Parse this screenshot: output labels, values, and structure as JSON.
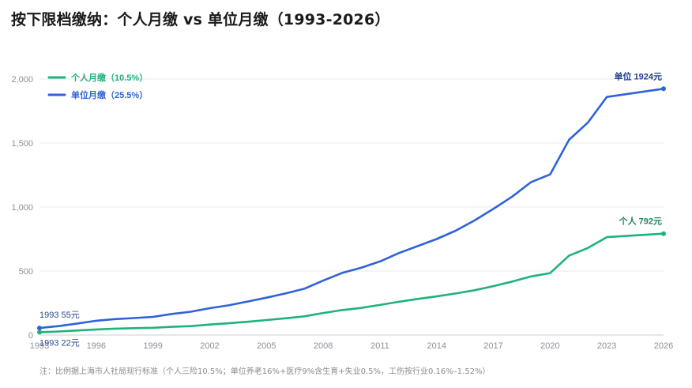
{
  "title": "按下限档缴纳：个人月缴 vs 单位月缴（1993-2026）",
  "note": "注：比例据上海市人社局现行标准（个人三险10.5%；单位养老16%+医疗9%含生育+失业0.5%，工伤按行业0.16%–1.52%）",
  "colors": {
    "personal": "#1db37a",
    "employer": "#2e63d8",
    "grid": "#e6e8ec",
    "tick": "#8a8f98"
  },
  "chart_data": {
    "type": "line",
    "title": "按下限档缴纳：个人月缴 vs 单位月缴（1993-2026）",
    "xlabel": "",
    "ylabel": "",
    "xlim": [
      1993,
      2026
    ],
    "ylim": [
      0,
      2000
    ],
    "xticks": [
      1993,
      1996,
      1999,
      2002,
      2005,
      2008,
      2011,
      2014,
      2017,
      2020,
      2023,
      2026
    ],
    "yticks": [
      0,
      500,
      1000,
      1500,
      2000
    ],
    "ytick_labels": [
      "0",
      "500",
      "1,000",
      "1,500",
      "2,000"
    ],
    "grid": "horizontal",
    "legend_position": "top-left",
    "x": [
      1993,
      1994,
      1995,
      1996,
      1997,
      1998,
      1999,
      2000,
      2001,
      2002,
      2003,
      2004,
      2005,
      2006,
      2007,
      2008,
      2009,
      2010,
      2011,
      2012,
      2013,
      2014,
      2015,
      2016,
      2017,
      2018,
      2019,
      2020,
      2021,
      2022,
      2023,
      2026
    ],
    "series": [
      {
        "name": "个人月缴（10.5%）",
        "color": "#1db37a",
        "values": [
          22,
          28,
          36,
          44,
          50,
          54,
          57,
          64,
          70,
          82,
          92,
          104,
          117,
          131,
          146,
          172,
          195,
          212,
          235,
          260,
          282,
          302,
          325,
          350,
          382,
          418,
          458,
          484,
          620,
          680,
          765,
          792
        ]
      },
      {
        "name": "单位月缴（25.5%）",
        "color": "#2e63d8",
        "values": [
          55,
          70,
          90,
          112,
          125,
          133,
          142,
          165,
          182,
          210,
          232,
          262,
          292,
          325,
          362,
          425,
          485,
          525,
          575,
          640,
          695,
          750,
          815,
          895,
          985,
          1082,
          1195,
          1255,
          1525,
          1660,
          1860,
          1924
        ]
      }
    ],
    "annotations": [
      {
        "text": "单位 1924元",
        "series": 1,
        "at": "end"
      },
      {
        "text": "个人 792元",
        "series": 0,
        "at": "end"
      },
      {
        "text": "1993 55元",
        "series": 1,
        "at": "start"
      },
      {
        "text": "1993 22元",
        "series": 0,
        "at": "start"
      }
    ]
  }
}
